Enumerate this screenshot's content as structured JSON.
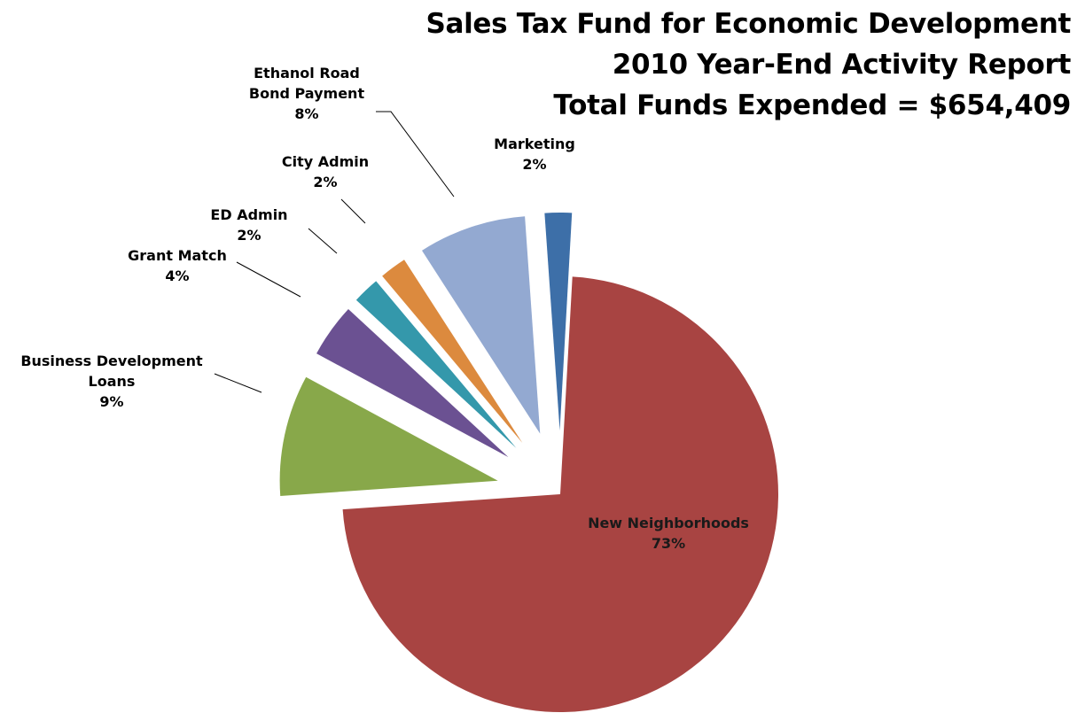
{
  "chart_data": {
    "type": "pie",
    "title": [
      "Sales Tax Fund for Economic Development",
      "2010 Year-End Activity Report",
      "Total Funds Expended = $654,409"
    ],
    "legend": "none",
    "slices": [
      {
        "key": "marketing",
        "label": [
          "Marketing"
        ],
        "value": 2,
        "value_label": "2%",
        "color": "#3d6fa8"
      },
      {
        "key": "new-neighborhoods",
        "label": [
          "New Neighborhoods"
        ],
        "value": 73,
        "value_label": "73%",
        "color": "#a84442"
      },
      {
        "key": "business-development-loans",
        "label": [
          "Business Development",
          "Loans"
        ],
        "value": 9,
        "value_label": "9%",
        "color": "#88a84a"
      },
      {
        "key": "grant-match",
        "label": [
          "Grant Match"
        ],
        "value": 4,
        "value_label": "4%",
        "color": "#6b5192"
      },
      {
        "key": "ed-admin",
        "label": [
          "ED Admin"
        ],
        "value": 2,
        "value_label": "2%",
        "color": "#3498ab"
      },
      {
        "key": "city-admin",
        "label": [
          "City Admin"
        ],
        "value": 2,
        "value_label": "2%",
        "color": "#dc8a3e"
      },
      {
        "key": "ethanol-road-bond-payment",
        "label": [
          "Ethanol Road",
          "Bond Payment"
        ],
        "value": 8,
        "value_label": "8%",
        "color": "#93a9d1"
      }
    ]
  }
}
